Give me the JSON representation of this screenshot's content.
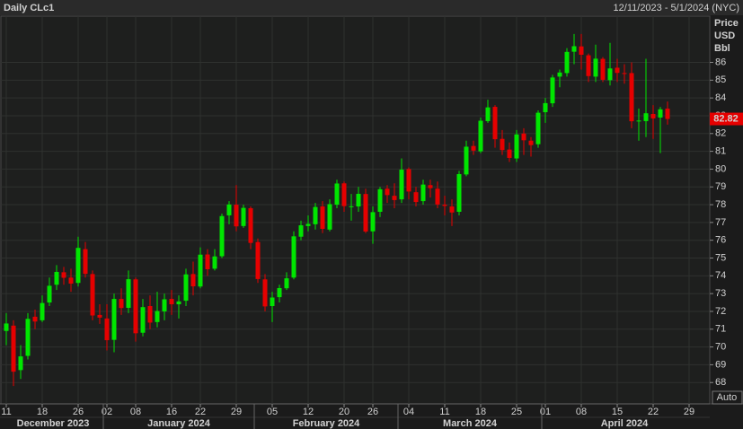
{
  "chart_data": {
    "type": "candlestick",
    "title": "Daily CLc1",
    "subtitle": "12/11/2023 - 5/1/2024 (NYC)",
    "y_axis_label": [
      "Price",
      "USD",
      "Bbl"
    ],
    "auto_label": "Auto",
    "up_color": "#00e600",
    "down_color": "#e60000",
    "grid": true,
    "ylim": [
      66.8,
      88.6
    ],
    "yticks": [
      68,
      69,
      70,
      71,
      72,
      73,
      74,
      75,
      76,
      77,
      78,
      79,
      80,
      81,
      82,
      83,
      84,
      85,
      86
    ],
    "months": [
      {
        "label": "December 2023",
        "days": [
          "11",
          null,
          null,
          null,
          null,
          "18",
          null,
          null,
          null,
          null,
          "26",
          null,
          null,
          null
        ]
      },
      {
        "label": "January 2024",
        "days": [
          "02",
          null,
          null,
          null,
          "08",
          null,
          null,
          null,
          null,
          "16",
          null,
          null,
          null,
          "22",
          null,
          null,
          null,
          null,
          "29",
          null,
          null
        ]
      },
      {
        "label": "February 2024",
        "days": [
          null,
          null,
          "05",
          null,
          null,
          null,
          null,
          "12",
          null,
          null,
          null,
          null,
          "20",
          null,
          null,
          null,
          "26",
          null,
          null,
          null
        ]
      },
      {
        "label": "March 2024",
        "days": [
          null,
          "04",
          null,
          null,
          null,
          null,
          "11",
          null,
          null,
          null,
          null,
          "18",
          null,
          null,
          null,
          null,
          "25",
          null,
          null,
          null
        ]
      },
      {
        "label": "April 2024",
        "days": [
          "01",
          null,
          null,
          null,
          null,
          "08",
          null,
          null,
          null,
          null,
          "15",
          null,
          null,
          null,
          null,
          "22",
          null,
          null,
          null,
          null,
          "29",
          null,
          null
        ]
      }
    ],
    "open": [
      70.9,
      71.2,
      68.7,
      69.5,
      71.7,
      71.5,
      72.5,
      73.5,
      74.2,
      73.9,
      73.6,
      75.5,
      74.1,
      71.8,
      71.6,
      70.4,
      72.7,
      72.2,
      73.8,
      70.8,
      72.3,
      71.4,
      72.0,
      72.7,
      72.4,
      72.6,
      74.1,
      73.4,
      75.2,
      74.4,
      75.1,
      77.4,
      78.0,
      76.8,
      77.8,
      75.9,
      73.8,
      72.3,
      72.8,
      73.3,
      73.9,
      76.2,
      76.8,
      76.9,
      77.9,
      76.6,
      78.0,
      79.2,
      77.9,
      77.9,
      78.6,
      76.5,
      77.6,
      78.9,
      78.5,
      78.3,
      80.0,
      78.7,
      78.2,
      79.1,
      78.9,
      78.0,
      77.9,
      77.6,
      79.7,
      81.3,
      81.0,
      82.7,
      83.5,
      81.7,
      81.1,
      80.6,
      82.0,
      81.6,
      81.4,
      83.2,
      83.7,
      85.2,
      85.4,
      86.6,
      86.9,
      86.4,
      85.2,
      86.2,
      85.0,
      85.7,
      85.4,
      85.4,
      82.7,
      82.7,
      83.1,
      82.9,
      83.4,
      null,
      null,
      null,
      null,
      null
    ],
    "high": [
      71.9,
      71.5,
      70.1,
      71.9,
      72.1,
      72.9,
      73.9,
      74.6,
      74.5,
      74.4,
      76.2,
      75.9,
      74.3,
      72.4,
      72.4,
      73.0,
      73.3,
      74.3,
      73.9,
      72.7,
      72.9,
      73.1,
      73.0,
      73.2,
      72.9,
      74.4,
      74.8,
      75.6,
      75.5,
      75.5,
      77.5,
      78.2,
      79.1,
      78.0,
      77.9,
      76.1,
      74.1,
      73.1,
      73.5,
      74.2,
      76.5,
      77.1,
      77.4,
      78.1,
      78.2,
      78.3,
      79.4,
      79.3,
      78.6,
      79.0,
      78.9,
      77.9,
      79.0,
      79.1,
      79.2,
      80.6,
      80.1,
      79.0,
      79.4,
      79.4,
      79.3,
      78.5,
      78.3,
      79.9,
      81.6,
      81.6,
      82.9,
      83.9,
      83.6,
      82.2,
      81.5,
      82.2,
      82.3,
      81.8,
      83.3,
      84.0,
      85.3,
      85.6,
      86.8,
      87.6,
      87.6,
      86.5,
      87.0,
      86.3,
      87.1,
      86.2,
      85.9,
      86.0,
      83.4,
      86.2,
      83.6,
      83.5,
      83.8,
      null,
      null,
      null,
      null,
      null
    ],
    "low": [
      70.1,
      67.8,
      68.2,
      69.3,
      71.0,
      71.4,
      72.3,
      73.2,
      73.5,
      73.1,
      73.4,
      73.9,
      71.5,
      71.3,
      69.8,
      69.7,
      71.8,
      71.9,
      70.3,
      70.6,
      71.0,
      71.1,
      71.5,
      71.8,
      71.6,
      72.3,
      72.9,
      73.3,
      74.0,
      74.3,
      75.0,
      76.9,
      76.5,
      76.7,
      75.5,
      73.6,
      72.0,
      71.4,
      72.5,
      73.2,
      73.8,
      76.0,
      76.5,
      76.6,
      76.4,
      76.5,
      77.8,
      77.6,
      77.1,
      77.6,
      76.4,
      75.8,
      77.3,
      78.1,
      77.8,
      78.1,
      78.3,
      77.9,
      78.0,
      78.4,
      77.8,
      77.4,
      76.8,
      77.4,
      79.6,
      80.8,
      80.9,
      82.6,
      81.2,
      80.8,
      80.4,
      80.4,
      80.8,
      80.7,
      81.2,
      82.6,
      83.5,
      84.6,
      85.2,
      85.9,
      85.6,
      84.9,
      84.9,
      84.9,
      84.7,
      84.9,
      84.8,
      82.3,
      81.6,
      81.8,
      81.7,
      80.9,
      82.5,
      null,
      null,
      null,
      null,
      null
    ],
    "close": [
      71.32,
      68.61,
      69.47,
      71.58,
      71.43,
      72.47,
      73.44,
      74.22,
      73.89,
      73.56,
      75.57,
      74.11,
      71.77,
      71.65,
      70.38,
      72.7,
      72.19,
      73.81,
      70.77,
      72.24,
      71.37,
      72.02,
      72.68,
      72.4,
      72.56,
      74.08,
      73.41,
      75.19,
      74.37,
      75.09,
      77.36,
      78.01,
      76.78,
      77.82,
      75.85,
      73.82,
      72.28,
      72.78,
      73.31,
      73.86,
      76.22,
      76.84,
      76.92,
      77.87,
      76.64,
      78.03,
      79.19,
      77.92,
      77.91,
      78.61,
      76.49,
      77.58,
      78.87,
      78.54,
      78.26,
      79.97,
      78.74,
      78.15,
      79.13,
      78.93,
      78.01,
      77.93,
      77.56,
      79.72,
      81.26,
      81.04,
      82.72,
      83.47,
      81.68,
      81.07,
      80.63,
      81.95,
      81.62,
      81.35,
      83.17,
      83.71,
      85.15,
      85.43,
      86.59,
      86.91,
      86.43,
      85.23,
      86.21,
      85.02,
      85.66,
      85.41,
      85.36,
      82.69,
      82.73,
      83.14,
      82.85,
      83.36,
      82.82,
      null,
      null,
      null,
      null,
      null
    ]
  }
}
